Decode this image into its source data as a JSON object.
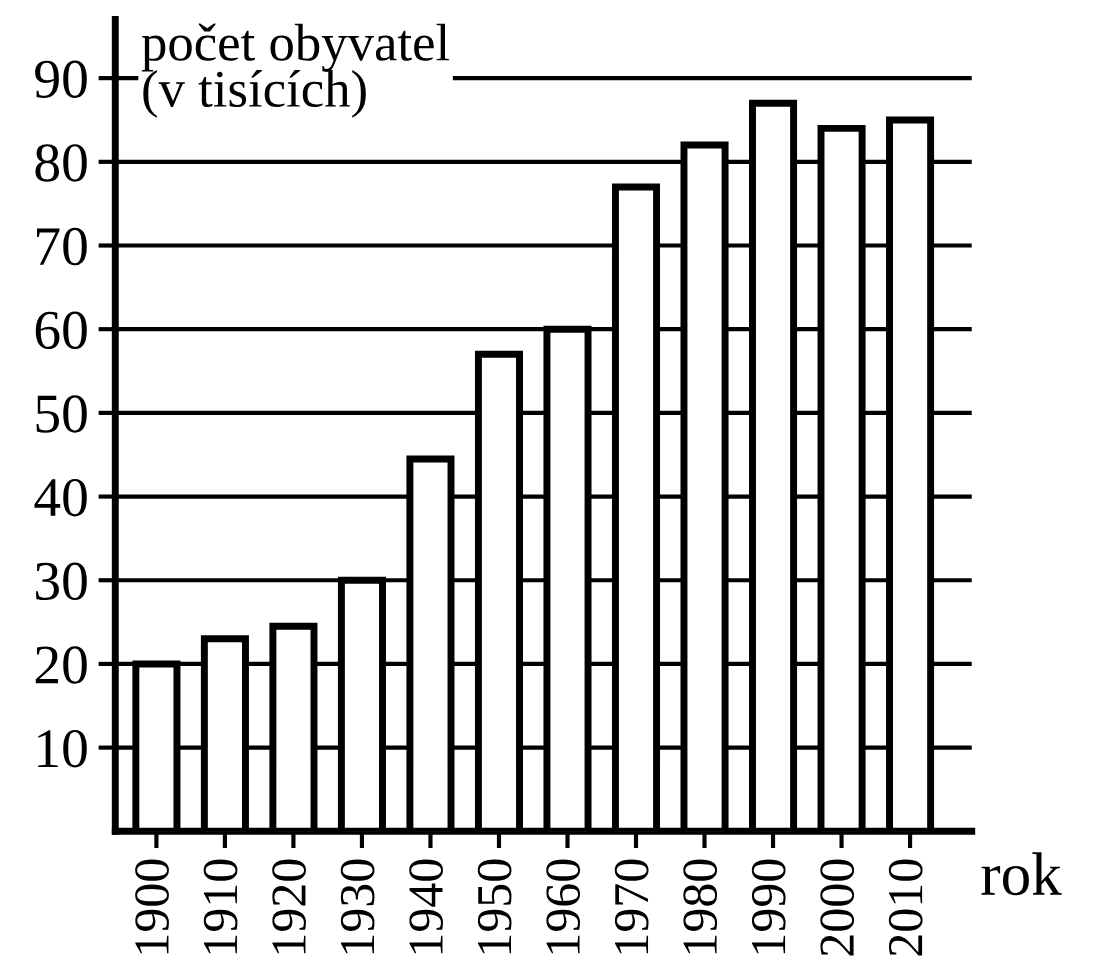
{
  "chart_data": {
    "type": "bar",
    "ylabel": "počet obyvatel\n(v tisících)",
    "xlabel": "rok",
    "categories": [
      "1900",
      "1910",
      "1920",
      "1930",
      "1940",
      "1950",
      "1960",
      "1970",
      "1980",
      "1990",
      "2000",
      "2010"
    ],
    "values": [
      20,
      23,
      24.5,
      30,
      44.5,
      57,
      60,
      77,
      82,
      87,
      84,
      85
    ],
    "color": "#ffffff",
    "ylim": [
      0,
      97
    ],
    "yticks": [
      10,
      20,
      30,
      40,
      50,
      60,
      70,
      80,
      90
    ],
    "grid": "y"
  }
}
